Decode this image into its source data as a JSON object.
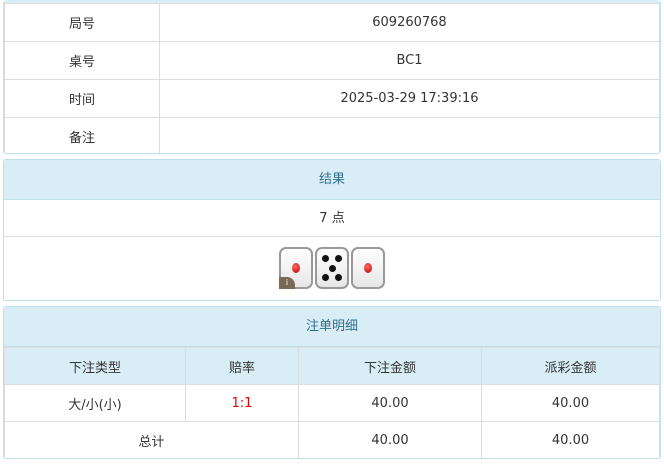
{
  "info": {
    "rows": [
      {
        "label": "局号",
        "value": "609260768"
      },
      {
        "label": "桌号",
        "value": "BC1"
      },
      {
        "label": "时间",
        "value": "2025-03-29 17:39:16"
      },
      {
        "label": "备注",
        "value": ""
      }
    ]
  },
  "result": {
    "title": "结果",
    "points": "7 点",
    "dice": [
      1,
      5,
      1
    ],
    "info_icon": "i"
  },
  "bets": {
    "title": "注单明细",
    "headers": [
      "下注类型",
      "赔率",
      "下注金额",
      "派彩金额"
    ],
    "rows": [
      {
        "type": "大/小(小)",
        "odds": "1:1",
        "amount": "40.00",
        "payout": "40.00"
      }
    ],
    "total": {
      "label": "总计",
      "amount": "40.00",
      "payout": "40.00"
    },
    "odds_color": "#e00000"
  }
}
